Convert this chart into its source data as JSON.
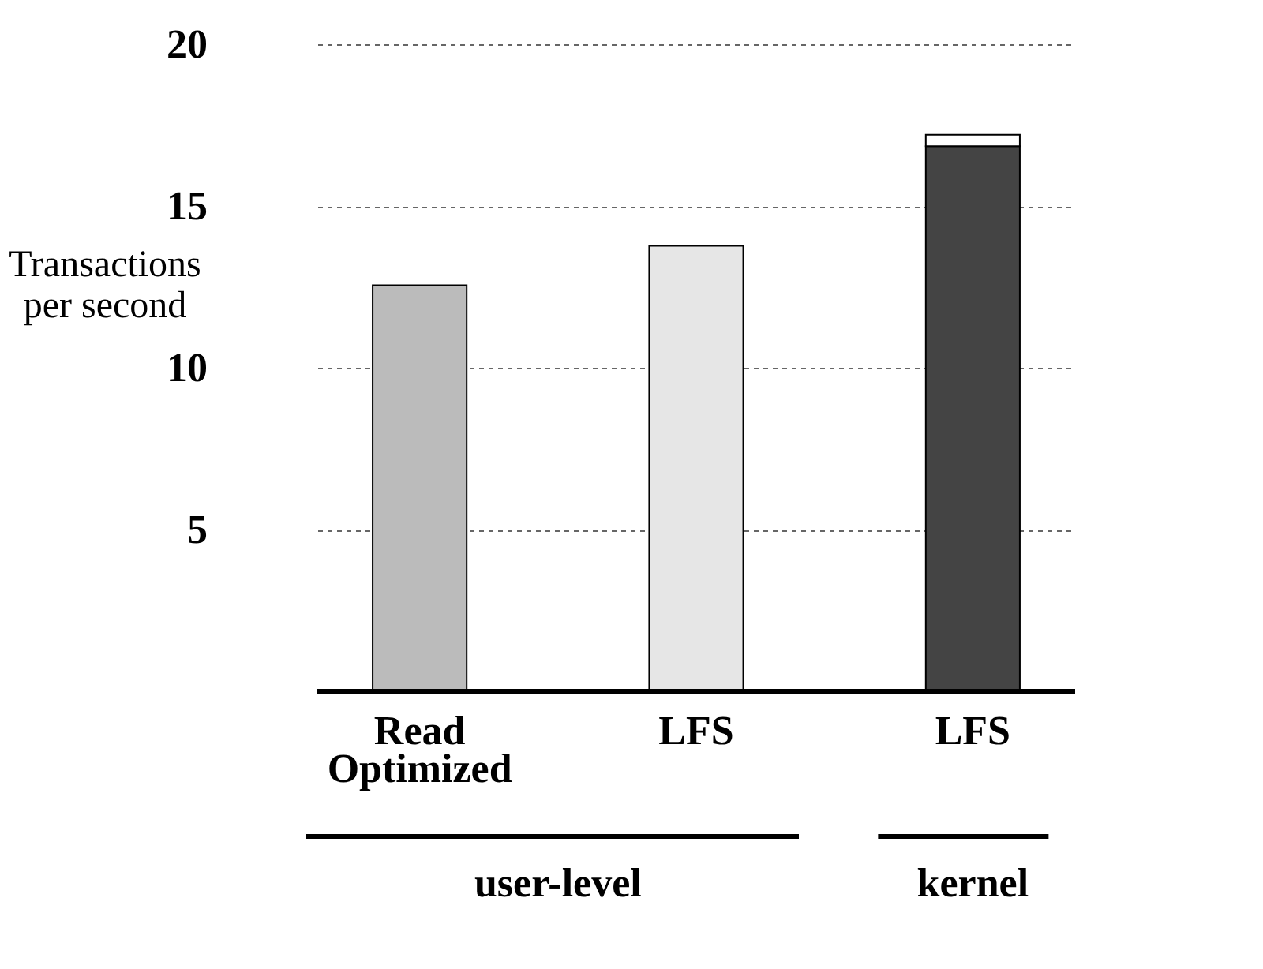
{
  "chart_data": {
    "type": "bar",
    "ylabel": "Transactions per second",
    "categories": [
      "Read Optimized",
      "LFS",
      "LFS"
    ],
    "stacked": true,
    "series": [
      {
        "colors": [
          "#bbbbbb",
          "#e6e6e6",
          "#444444"
        ],
        "values": [
          12.55,
          13.77,
          16.85
        ]
      },
      {
        "color": "#ffffff",
        "values": [
          null,
          null,
          0.35
        ]
      }
    ],
    "ylim": [
      0,
      20
    ],
    "yticks": [
      5,
      10,
      15,
      20
    ],
    "grid": "y",
    "annotations": [
      "user-level",
      "kernel"
    ]
  }
}
